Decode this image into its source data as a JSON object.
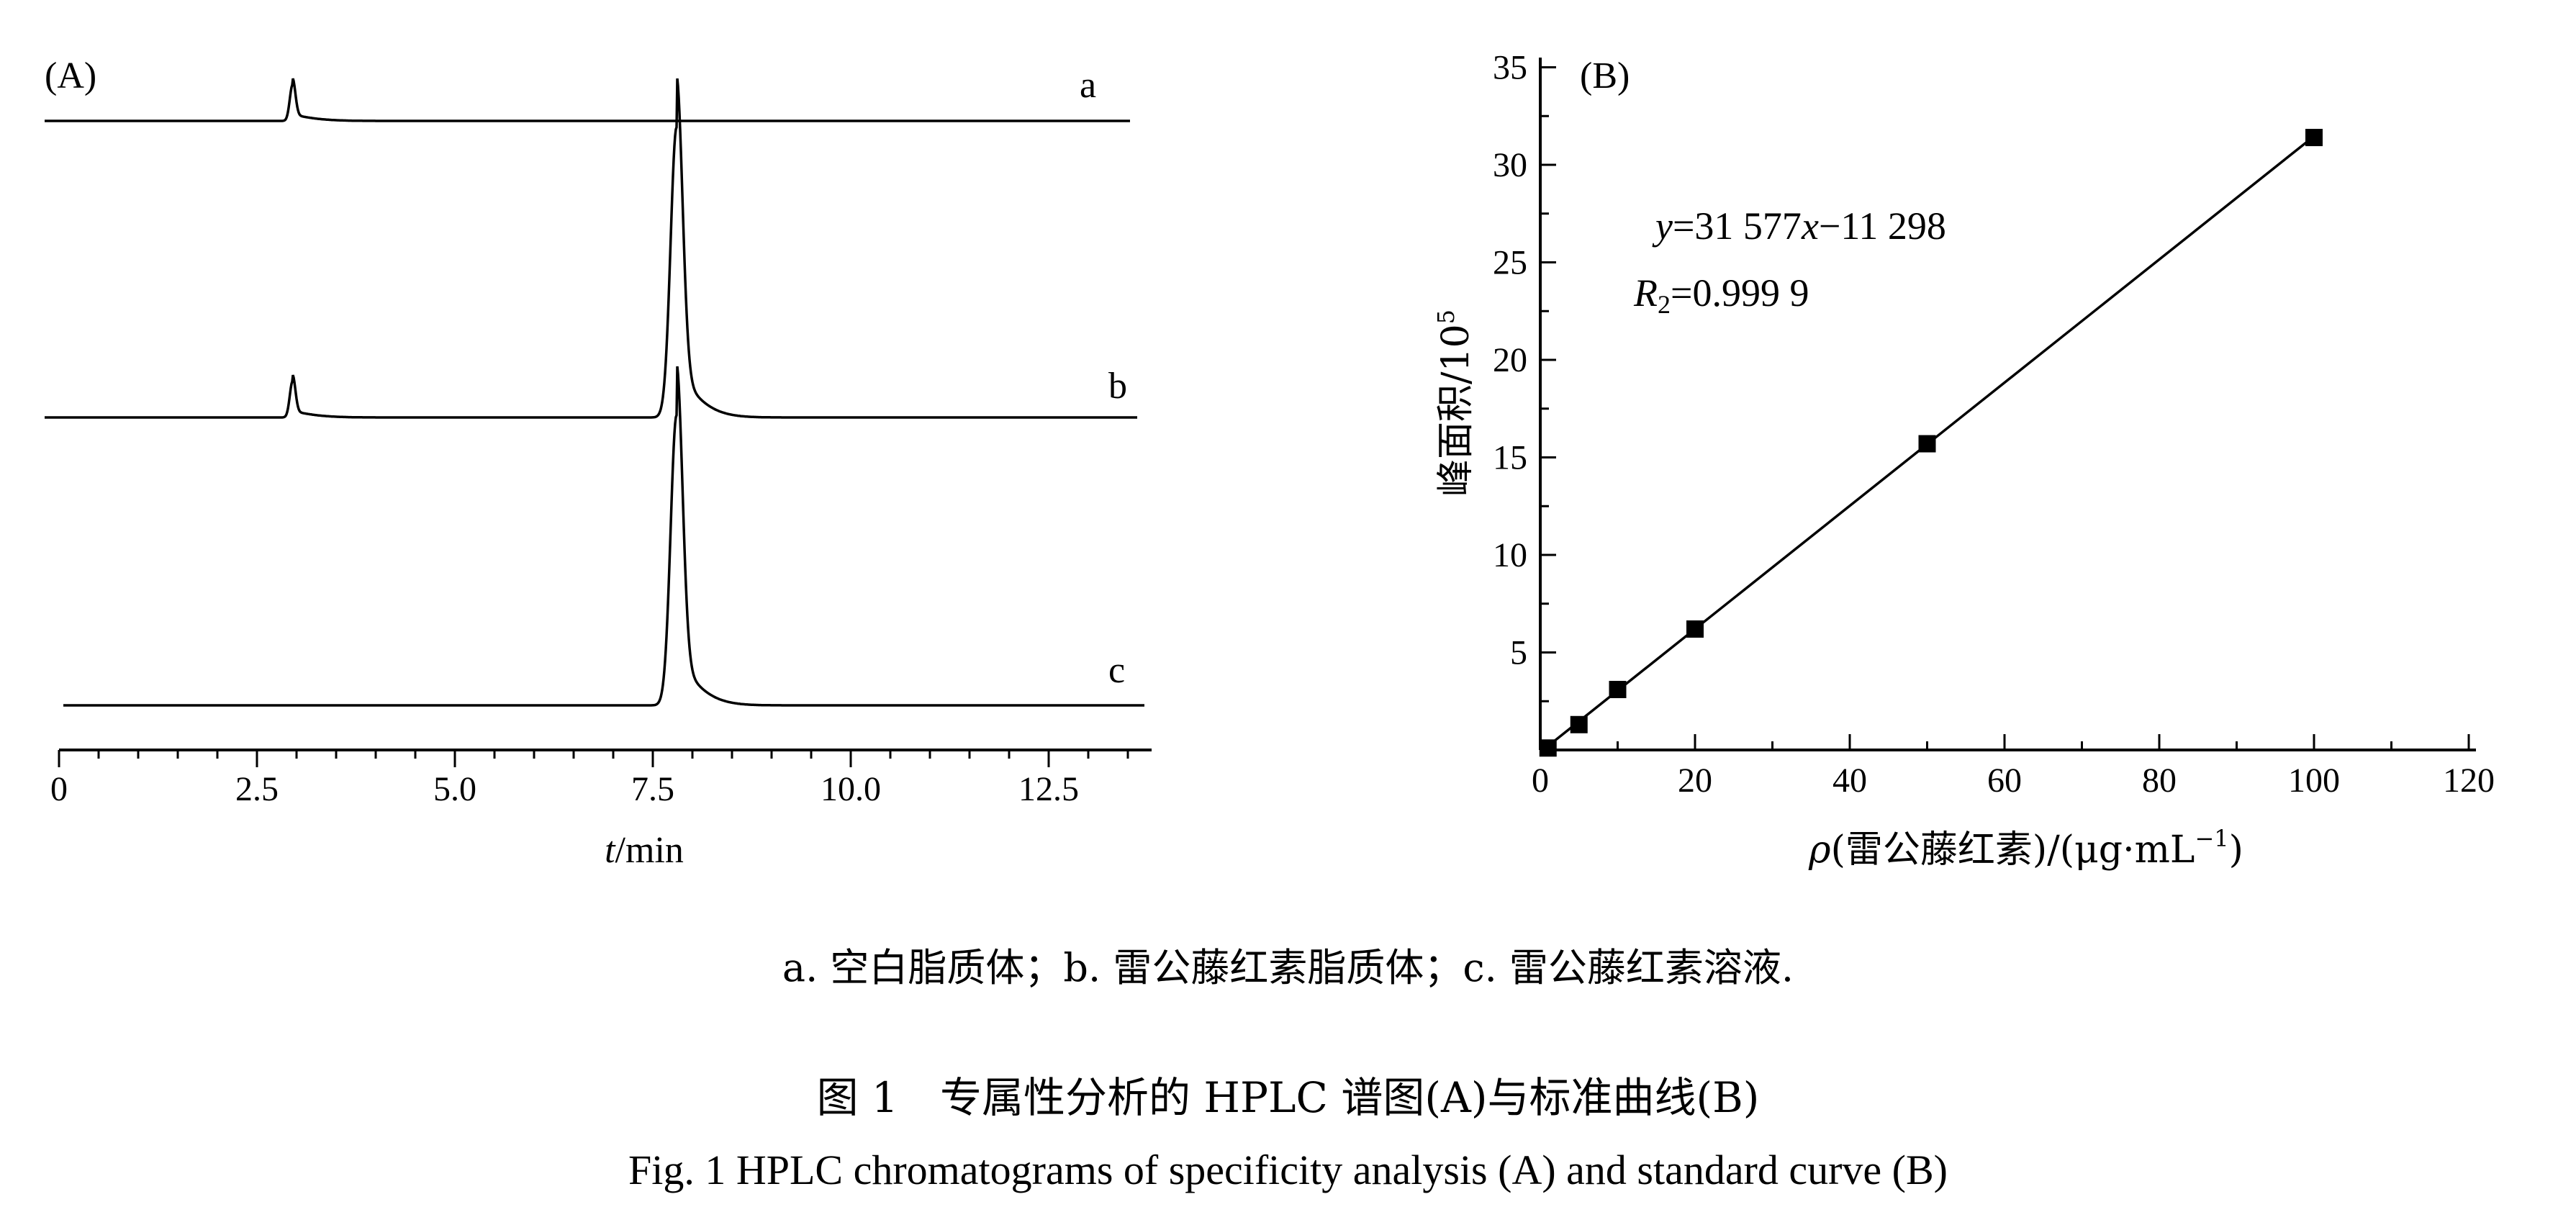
{
  "panels": [
    {
      "id": "A",
      "panel_label": "(A)",
      "chart_data": {
        "type": "line",
        "title": "",
        "xlabel_italic": "t",
        "xlabel_rest": "/min",
        "xlim": [
          0,
          13.5
        ],
        "x_ticks": [
          "0",
          "2.5",
          "5.0",
          "7.5",
          "10.0",
          "12.5"
        ],
        "y_axis": "none",
        "series": [
          {
            "name": "a",
            "baseline_offset": 0,
            "peaks": [
              {
                "rt": 2.95,
                "height": 0.45
              }
            ]
          },
          {
            "name": "b",
            "baseline_offset": 0,
            "peaks": [
              {
                "rt": 2.95,
                "height": 0.45
              },
              {
                "rt": 7.8,
                "height": 3.6
              }
            ]
          },
          {
            "name": "c",
            "baseline_offset": 0,
            "peaks": [
              {
                "rt": 7.8,
                "height": 3.6
              }
            ]
          }
        ]
      }
    },
    {
      "id": "B",
      "panel_label": "(B)",
      "chart_data": {
        "type": "scatter",
        "title": "",
        "xlabel_rho": "ρ",
        "xlabel_rest": "(雷公藤红素)/(μg·mL",
        "xlabel_sup": "−1",
        "xlabel_close": ")",
        "ylabel": "峰面积/10",
        "ylabel_sup": "5",
        "xlim": [
          0,
          120
        ],
        "ylim": [
          0,
          35
        ],
        "x_ticks": [
          "0",
          "20",
          "40",
          "60",
          "80",
          "100",
          "120"
        ],
        "y_ticks": [
          "5",
          "10",
          "15",
          "20",
          "25",
          "30",
          "35"
        ],
        "points": [
          {
            "x": 1,
            "y": 0.1
          },
          {
            "x": 5,
            "y": 1.3
          },
          {
            "x": 10,
            "y": 3.1
          },
          {
            "x": 20,
            "y": 6.2
          },
          {
            "x": 50,
            "y": 15.7
          },
          {
            "x": 100,
            "y": 31.4
          }
        ],
        "fit": {
          "slope": 0.31577,
          "intercept": -0.11298
        },
        "equation": {
          "y": "y",
          "eq": "=31 577",
          "x": "x",
          "rest": "−11 298",
          "r": "R",
          "r_sub": "2",
          "r_val": "=0.999 9"
        }
      }
    }
  ],
  "captions": {
    "legend": "a. 空白脂质体；b. 雷公藤红素脂质体；c. 雷公藤红素溶液.",
    "figure_zh": "图 1　专属性分析的 HPLC 谱图(A)与标准曲线(B)",
    "figure_en": "Fig. 1   HPLC chromatograms of specificity analysis (A) and standard curve (B)"
  }
}
